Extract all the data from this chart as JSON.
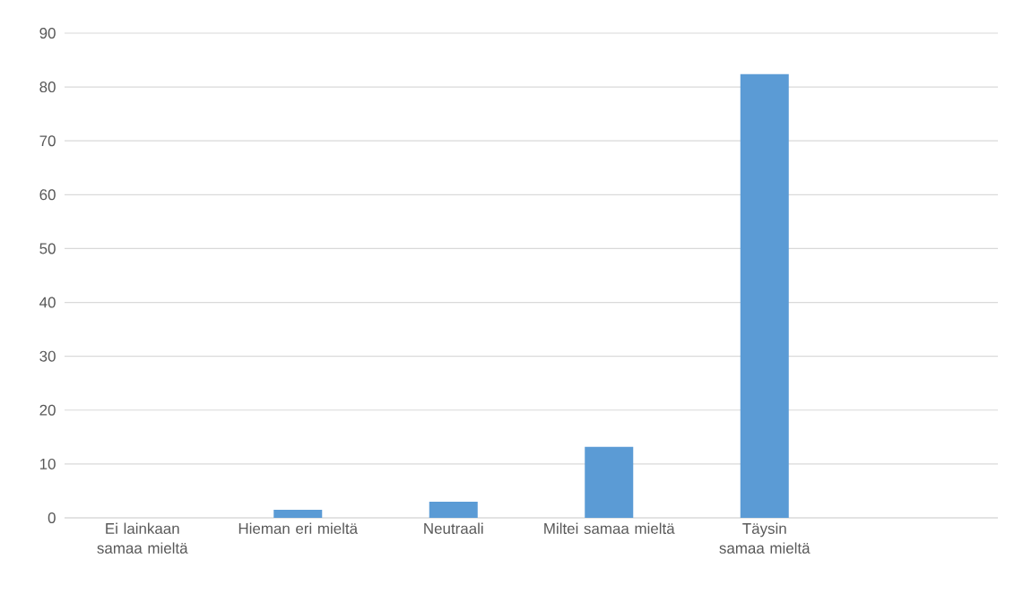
{
  "chart_data": {
    "type": "bar",
    "categories": [
      "Ei lainkaan samaa mieltä",
      "Hieman eri mieltä",
      "Neutraali",
      "Miltei samaa mieltä",
      "Täysin samaa mieltä",
      null
    ],
    "values": [
      0,
      1.5,
      3.0,
      13.2,
      82.4,
      null
    ],
    "color": "#5b9bd5",
    "ylim": [
      0,
      90
    ],
    "yticks": [
      0,
      10,
      20,
      30,
      40,
      50,
      60,
      70,
      80,
      90
    ],
    "grid": "y"
  }
}
